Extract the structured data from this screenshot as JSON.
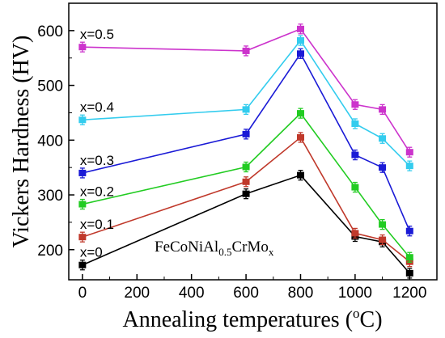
{
  "chart_data": {
    "type": "line",
    "xlabel_main": "Annealing temperatures (",
    "xlabel_sup": "o",
    "xlabel_end": "C)",
    "ylabel": "Vickers Hardness (HV)",
    "xlim": [
      -50,
      1300
    ],
    "ylim": [
      145,
      650
    ],
    "x_ticks": [
      0,
      200,
      400,
      600,
      800,
      1000,
      1200
    ],
    "y_ticks": [
      200,
      300,
      400,
      500,
      600
    ],
    "grid": false,
    "annotation": {
      "prefix": "FeCoNiAl",
      "sub1": "0.5",
      "mid": "CrMo",
      "sub2": "x"
    },
    "x": [
      0,
      600,
      800,
      1000,
      1100,
      1200
    ],
    "series": [
      {
        "name": "x=0",
        "color": "#000000",
        "values": [
          172,
          302,
          336,
          224,
          214,
          157
        ]
      },
      {
        "name": "x=0.1",
        "color": "#c0392b",
        "values": [
          223,
          324,
          405,
          230,
          218,
          178
        ]
      },
      {
        "name": "x=0.2",
        "color": "#22cc22",
        "values": [
          283,
          351,
          449,
          314,
          246,
          186
        ]
      },
      {
        "name": "x=0.3",
        "color": "#1a1ad6",
        "values": [
          340,
          411,
          558,
          373,
          350,
          234
        ]
      },
      {
        "name": "x=0.4",
        "color": "#33ccee",
        "values": [
          437,
          456,
          582,
          430,
          403,
          353
        ]
      },
      {
        "name": "x=0.5",
        "color": "#cc33cc",
        "values": [
          570,
          563,
          603,
          465,
          456,
          378
        ]
      }
    ]
  }
}
